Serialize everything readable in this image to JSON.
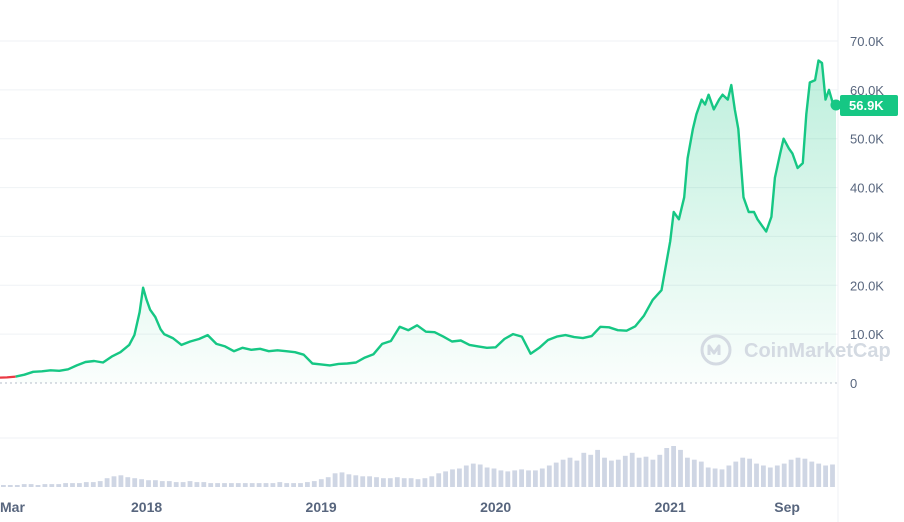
{
  "watermark": "CoinMarketCap",
  "colors": {
    "up": "#16c784",
    "down": "#ea3943",
    "volume": "#cfd6e4",
    "grid": "#eff2f5",
    "axis_text": "#58667e"
  },
  "chart_data": {
    "type": "area",
    "xlim": [
      2017.16,
      2021.95
    ],
    "ylim": [
      0,
      70000
    ],
    "x_ticks": [
      {
        "label": "Mar",
        "x": 2017.17
      },
      {
        "label": "2018",
        "x": 2018.0
      },
      {
        "label": "2019",
        "x": 2019.0
      },
      {
        "label": "2020",
        "x": 2020.0
      },
      {
        "label": "2021",
        "x": 2021.0
      },
      {
        "label": "Sep",
        "x": 2021.67
      }
    ],
    "y_ticks": [
      {
        "label": "0",
        "value": 0
      },
      {
        "label": "10.0K",
        "value": 10000
      },
      {
        "label": "20.0K",
        "value": 20000
      },
      {
        "label": "30.0K",
        "value": 30000
      },
      {
        "label": "40.0K",
        "value": 40000
      },
      {
        "label": "50.0K",
        "value": 50000
      },
      {
        "label": "60.0K",
        "value": 60000
      },
      {
        "label": "70.0K",
        "value": 70000
      }
    ],
    "current_price_label": "56.9K",
    "current_price": 56900,
    "series": [
      {
        "x": [
          2017.16,
          2017.2,
          2017.25,
          2017.3,
          2017.35,
          2017.4,
          2017.45,
          2017.5,
          2017.55,
          2017.6,
          2017.65,
          2017.7,
          2017.75,
          2017.8,
          2017.85,
          2017.9,
          2017.93,
          2017.96,
          2017.98,
          2018.0,
          2018.02,
          2018.05,
          2018.08,
          2018.1,
          2018.15,
          2018.2,
          2018.25,
          2018.3,
          2018.35,
          2018.4,
          2018.45,
          2018.5,
          2018.55,
          2018.6,
          2018.65,
          2018.7,
          2018.75,
          2018.8,
          2018.85,
          2018.9,
          2018.95,
          2019.0,
          2019.05,
          2019.1,
          2019.15,
          2019.2,
          2019.25,
          2019.3,
          2019.35,
          2019.4,
          2019.45,
          2019.5,
          2019.55,
          2019.6,
          2019.65,
          2019.7,
          2019.75,
          2019.8,
          2019.85,
          2019.9,
          2019.95,
          2020.0,
          2020.05,
          2020.1,
          2020.15,
          2020.2,
          2020.25,
          2020.3,
          2020.35,
          2020.4,
          2020.45,
          2020.5,
          2020.55,
          2020.6,
          2020.65,
          2020.7,
          2020.75,
          2020.8,
          2020.85,
          2020.9,
          2020.95,
          2021.0,
          2021.02,
          2021.05,
          2021.08,
          2021.1,
          2021.13,
          2021.15,
          2021.18,
          2021.2,
          2021.22,
          2021.25,
          2021.28,
          2021.3,
          2021.33,
          2021.35,
          2021.37,
          2021.39,
          2021.42,
          2021.45,
          2021.48,
          2021.5,
          2021.53,
          2021.55,
          2021.58,
          2021.6,
          2021.63,
          2021.65,
          2021.68,
          2021.7,
          2021.73,
          2021.76,
          2021.78,
          2021.8,
          2021.83,
          2021.85,
          2021.87,
          2021.89,
          2021.91,
          2021.93,
          2021.95
        ],
        "y": [
          1100,
          1150,
          1300,
          1700,
          2300,
          2400,
          2600,
          2500,
          2800,
          3600,
          4300,
          4500,
          4200,
          5400,
          6300,
          7800,
          9800,
          14500,
          19500,
          17000,
          15000,
          13500,
          11000,
          10000,
          9200,
          7800,
          8500,
          9000,
          9800,
          8000,
          7500,
          6500,
          7200,
          6800,
          7000,
          6500,
          6700,
          6500,
          6300,
          5800,
          4000,
          3800,
          3600,
          3900,
          4000,
          4200,
          5200,
          5900,
          8000,
          8600,
          11500,
          10800,
          11800,
          10500,
          10400,
          9500,
          8500,
          8700,
          7800,
          7500,
          7200,
          7300,
          9000,
          10000,
          9500,
          6000,
          7200,
          8800,
          9500,
          9800,
          9400,
          9200,
          9600,
          11500,
          11400,
          10800,
          10700,
          11600,
          13800,
          17000,
          19000,
          29000,
          35000,
          33500,
          38000,
          46000,
          52000,
          55000,
          58000,
          57000,
          59000,
          56000,
          58000,
          59000,
          58000,
          61000,
          56000,
          52000,
          38000,
          35000,
          35000,
          33500,
          32000,
          31000,
          34000,
          42000,
          47000,
          50000,
          48000,
          47000,
          44000,
          45000,
          55000,
          61500,
          62000,
          66000,
          65500,
          58000,
          60000,
          57500,
          56900
        ]
      }
    ],
    "volume": [
      2,
      2,
      2,
      3,
      3,
      2,
      3,
      3,
      3,
      4,
      4,
      4,
      5,
      5,
      6,
      9,
      11,
      12,
      10,
      9,
      8,
      7,
      7,
      6,
      6,
      5,
      5,
      6,
      5,
      5,
      4,
      4,
      4,
      4,
      4,
      4,
      4,
      4,
      4,
      4,
      5,
      4,
      4,
      4,
      5,
      6,
      8,
      10,
      14,
      15,
      13,
      12,
      11,
      11,
      10,
      9,
      9,
      10,
      9,
      9,
      8,
      9,
      11,
      14,
      16,
      18,
      19,
      22,
      24,
      23,
      20,
      19,
      17,
      16,
      17,
      18,
      17,
      17,
      19,
      22,
      25,
      28,
      30,
      27,
      35,
      33,
      38,
      30,
      27,
      28,
      32,
      35,
      30,
      31,
      28,
      33,
      40,
      42,
      38,
      30,
      28,
      26,
      20,
      19,
      18,
      22,
      26,
      30,
      29,
      24,
      22,
      20,
      22,
      24,
      28,
      30,
      29,
      26,
      24,
      22,
      23
    ]
  }
}
